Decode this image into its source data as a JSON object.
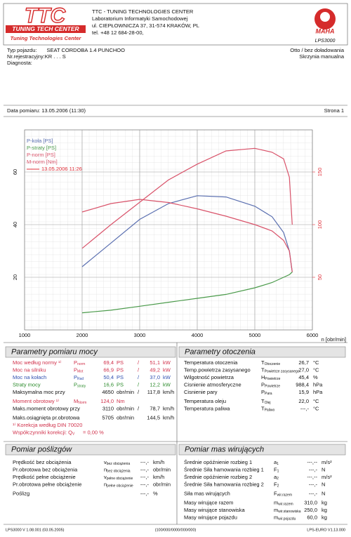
{
  "header": {
    "company": "TTC - TUNING TECHNOLOGIES CENTER",
    "lab": "Laboratorium Informatyki Samochodowej",
    "address": "ul. CIEPŁOWNICZA 37, 31-574 KRAKÓW, PL",
    "phone": "tel. +48 12 684-28-00,",
    "logo_left": "TTC",
    "logo_left_band": "TUNING TECH CENTER",
    "logo_left_caption": "Tuning Technologies Center",
    "logo_right": "MAHA",
    "logo_right_caption": "LPS3000"
  },
  "vehicle": {
    "rows": [
      [
        "Typ pojazdu:",
        "SEAT CORDOBA 1.4 PUNCHOO"
      ],
      [
        "Nr.rejestracyjny:KR . . . S"
      ],
      [
        "Diagnosta:"
      ]
    ],
    "right": [
      "Otto / bez doładowania",
      "Skrzynia manualna"
    ]
  },
  "measurement": {
    "date": "Data pomiaru: 13.05.2006 (11:30)",
    "page": "Strona 1"
  },
  "chart_data": {
    "type": "line",
    "x_label": "n [obr/min]",
    "x": [
      2000,
      2500,
      3000,
      3500,
      4000,
      4500,
      5000,
      5300,
      5500,
      5600,
      5650
    ],
    "series": [
      {
        "name": "P-koła [PS]",
        "color": "#5a6fb0",
        "values": [
          24,
          33,
          42,
          48,
          51,
          50.5,
          47,
          43,
          37,
          30,
          22
        ]
      },
      {
        "name": "P-straty [PS]",
        "color": "#4a9a4a",
        "values": [
          6.5,
          7.5,
          9,
          10.5,
          12,
          13.5,
          16,
          18,
          20,
          21,
          22
        ]
      },
      {
        "name": "P-norm [PS]",
        "color": "#d9536a",
        "values": [
          31,
          40,
          48.5,
          57,
          63,
          68,
          69,
          67.5,
          65,
          58,
          40
        ]
      },
      {
        "name": "M-norm [Nm]",
        "color": "#d9536a",
        "axis": "y2",
        "values": [
          112,
          120,
          124,
          121,
          115,
          108,
          100,
          94,
          85,
          75,
          55
        ]
      }
    ],
    "run_label": "13.05.2006 11:26",
    "run_color": "#e0303a",
    "xlim": [
      1000,
      6000
    ],
    "xticks": [
      1000,
      2000,
      3000,
      4000,
      5000,
      6000
    ],
    "ylim": [
      0,
      76
    ],
    "yticks": [
      20,
      40,
      60
    ],
    "y2lim": [
      0,
      190
    ],
    "y2ticks": [
      50,
      100,
      150
    ],
    "y2_color": "#e0303a",
    "grid": true
  },
  "sections": [
    {
      "title": "Parametry pomiaru mocy",
      "groups": [
        [
          {
            "label": "Moc według normy ¹⁾",
            "sym": "P",
            "sub": "norm",
            "v1": "69,4",
            "u1": "PS",
            "sep": "/",
            "v2": "51,1",
            "u2": "kW",
            "color": "#d0304a"
          },
          {
            "label": "Moc na silniku",
            "sym": "P",
            "sub": "Mot",
            "v1": "66,9",
            "u1": "PS",
            "sep": "/",
            "v2": "49,2",
            "u2": "kW",
            "color": "#d0304a"
          },
          {
            "label": "Moc na kołach",
            "sym": "P",
            "sub": "Rad",
            "v1": "50,4",
            "u1": "PS",
            "sep": "/",
            "v2": "37,0",
            "u2": "kW",
            "color": "#3050b0"
          },
          {
            "label": "Straty mocy",
            "sym": "P",
            "sub": "straty",
            "v1": "16,6",
            "u1": "PS",
            "sep": "/",
            "v2": "12,2",
            "u2": "kW",
            "color": "#2a8a2a"
          },
          {
            "label": "Maksymalna moc przy",
            "v1": "4650",
            "u1": "obr/min",
            "sep": "/",
            "v2": "117,8",
            "u2": "km/h",
            "color": "#111"
          }
        ],
        [
          {
            "label": "Moment obrotowy ¹⁾",
            "sym": "M",
            "sub": "Norm",
            "v1": "124,0",
            "u1": "Nm",
            "color": "#d0304a"
          },
          {
            "label": "Maks.moment obrotowy przy",
            "v1": "3110",
            "u1": "obr/min",
            "sep": "/",
            "v2": "78,7",
            "u2": "km/h",
            "color": "#111"
          }
        ],
        [
          {
            "label": "Maks.osiągnięta pr.obrotowa",
            "v1": "5705",
            "u1": "obr/min",
            "v2": "144,5",
            "u2": "km/h",
            "color": "#111"
          },
          {
            "label": "¹⁾ Korekcja według DIN 70020",
            "color": "#d0304a"
          },
          {
            "label": "Współczynniki korekcji: Q",
            "sub": "V",
            "v1": "= 0,00 %",
            "color": "#d0304a"
          }
        ]
      ]
    },
    {
      "title": "Parametry otoczenia",
      "groups": [
        [
          {
            "label": "Temperatura otoczenia",
            "sym": "T",
            "sub": "Otoczenie",
            "v1": "26,7",
            "u1": "°C",
            "color": "#111"
          },
          {
            "label": "Temp.powietrza zasysanego",
            "sym": "T",
            "sub": "Powietrze zasysanego",
            "v1": "27,0",
            "u1": "°C",
            "color": "#111"
          },
          {
            "label": "Wilgotność powietrza",
            "sym": "H",
            "sub": "Powietrze",
            "v1": "45,4",
            "u1": "%",
            "color": "#111"
          },
          {
            "label": "Cisnienie atmosferyczne",
            "sym": "P",
            "sub": "Powietrze",
            "v1": "988,4",
            "u1": "hPa",
            "color": "#111"
          },
          {
            "label": "Cisnienie pary",
            "sym": "P",
            "sub": "Para",
            "v1": "15,9",
            "u1": "hPa",
            "color": "#111"
          }
        ],
        [
          {
            "label": "Temperatura oleju",
            "sym": "T",
            "sub": "Olej",
            "v1": "22,0",
            "u1": "°C",
            "color": "#111"
          },
          {
            "label": "Temperatura paliwa",
            "sym": "T",
            "sub": "Paliwo",
            "v1": "---,-",
            "u1": "°C",
            "color": "#111"
          }
        ]
      ]
    },
    {
      "title": "Pomiar poślizgów",
      "groups": [
        [
          {
            "label": "Prędkość bez obciążenia",
            "sym": "v",
            "sub": "bez obciążenia",
            "v1": "---,-",
            "u1": "km/h",
            "color": "#111"
          },
          {
            "label": "Pr.obrotowa bez obciążenia",
            "sym": "n",
            "sub": "bez obciążenia",
            "v1": "---,-",
            "u1": "obr/min",
            "color": "#111"
          },
          {
            "label": "Prędkość pełne obciążenie",
            "sym": "v",
            "sub": "pełne obciążenie",
            "v1": "---,-",
            "u1": "km/h",
            "color": "#111"
          },
          {
            "label": "Pr.obrotowa pełne obciążenie",
            "sym": "n",
            "sub": "pełne obciążenie",
            "v1": "---,-",
            "u1": "obr/min",
            "color": "#111"
          }
        ],
        [
          {
            "label": "Poślizg",
            "v1": "---,-",
            "u1": "%",
            "color": "#111"
          }
        ]
      ]
    },
    {
      "title": "Pomiar mas wirujących",
      "groups": [
        [
          {
            "label": "Średnie opóźnienie rozbieg 1",
            "sym": "a",
            "sub": "1",
            "v1": "---,--",
            "u1": "m/s²",
            "color": "#111"
          },
          {
            "label": "Średnie Siła hamowania rozbieg 1",
            "sym": "F",
            "sub": "1",
            "v1": "---,-",
            "u1": "N",
            "color": "#111"
          },
          {
            "label": "Średnie opóźnienie rozbieg 2",
            "sym": "a",
            "sub": "2",
            "v1": "---,--",
            "u1": "m/s²",
            "color": "#111"
          },
          {
            "label": "Średnie Siła hamowania rozbieg 2",
            "sym": "F",
            "sub": "2",
            "v1": "---,-",
            "u1": "N",
            "color": "#111"
          }
        ],
        [
          {
            "label": "Siła mas wirujących",
            "sym": "F",
            "sub": "wir.razem",
            "v1": "---,-",
            "u1": "N",
            "color": "#111"
          }
        ],
        [
          {
            "label": "Masy wirujące razem",
            "sym": "m",
            "sub": "wir.razem",
            "v1": "310,0",
            "u1": "kg",
            "color": "#111"
          },
          {
            "label": "Masy wirujące stanowiska",
            "sym": "m",
            "sub": "wir.stanowiska",
            "v1": "250,0",
            "u1": "kg",
            "color": "#111"
          },
          {
            "label": "Masy wirujące pojazdu",
            "sym": "m",
            "sub": "wir.pojazdu",
            "v1": "60,0",
            "u1": "kg",
            "color": "#111"
          }
        ]
      ]
    }
  ],
  "footer": [
    "LPS3000 V 1.08.001 (03.05.2005)",
    "(100/000/0000/000/000)",
    "LPS-EURO V1.13.000"
  ]
}
